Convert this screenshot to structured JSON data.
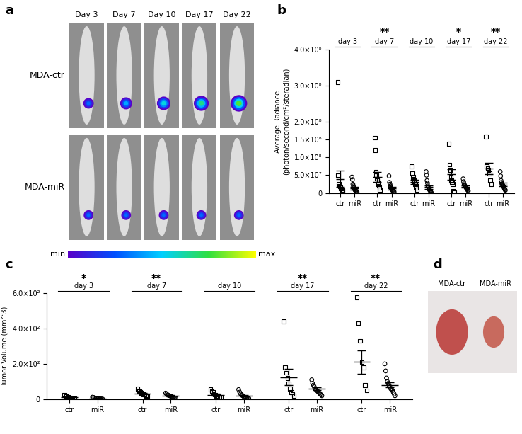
{
  "panel_labels": [
    "a",
    "b",
    "c",
    "d"
  ],
  "panel_a": {
    "columns": [
      "Day 3",
      "Day 7",
      "Day 10",
      "Day 17",
      "Day 22"
    ],
    "rows": [
      "MDA-ctr",
      "MDA-miR"
    ],
    "color_scale": {
      "min_label": "min",
      "max_label": "max"
    }
  },
  "chart_data": [
    {
      "type": "scatter",
      "ylabel": "Average Radiance\n(photon/second/cm²/steradian)",
      "categories": [
        "day 3",
        "day 7",
        "day 10",
        "day 17",
        "day 22"
      ],
      "significance": [
        null,
        "**",
        null,
        "*",
        "**"
      ],
      "ylim": [
        0,
        400000000
      ],
      "yticks": [
        0,
        {
          "value": 50000000,
          "label": "5.0×10⁷"
        },
        {
          "value": 100000000,
          "label": "1.0×10⁸"
        },
        {
          "value": 150000000,
          "label": "1.5×10⁸"
        },
        {
          "value": 200000000,
          "label": "2.0×10⁸"
        },
        {
          "value": 300000000,
          "label": "3.0×10⁸"
        },
        {
          "value": 400000000,
          "label": "4.0×10⁸"
        }
      ],
      "series": [
        {
          "name": "ctr",
          "marker": "square",
          "color": "#000000",
          "values": [
            [
              310000000,
              50000000,
              26000000,
              20000000,
              18000000,
              15000000,
              12000000,
              10000000,
              8000000,
              6000000
            ],
            [
              155000000,
              120000000,
              60000000,
              50000000,
              40000000,
              35000000,
              30000000,
              25000000,
              20000000,
              15000000,
              10000000
            ],
            [
              75000000,
              55000000,
              45000000,
              40000000,
              35000000,
              30000000,
              25000000,
              20000000,
              15000000,
              10000000
            ],
            [
              138000000,
              80000000,
              65000000,
              45000000,
              35000000,
              30000000,
              25000000,
              5000000,
              2000000
            ],
            [
              158000000,
              75000000,
              70000000,
              65000000,
              55000000,
              35000000,
              25000000
            ]
          ],
          "means": [
            40000000,
            45000000,
            32000000,
            52000000,
            68000000
          ],
          "errors": [
            22000000,
            13000000,
            6000000,
            15000000,
            16000000
          ]
        },
        {
          "name": "miR",
          "marker": "circle",
          "color": "#000000",
          "values": [
            [
              45000000,
              38000000,
              25000000,
              20000000,
              15000000,
              12000000,
              10000000,
              8000000,
              6000000,
              5000000,
              4000000,
              3000000
            ],
            [
              48000000,
              30000000,
              25000000,
              20000000,
              16000000,
              13000000,
              11000000,
              9000000,
              7000000,
              5000000,
              4000000,
              3000000
            ],
            [
              60000000,
              50000000,
              35000000,
              28000000,
              20000000,
              16000000,
              12000000,
              10000000,
              8000000,
              6000000,
              4000000,
              2000000
            ],
            [
              40000000,
              32000000,
              26000000,
              22000000,
              20000000,
              18000000,
              16000000,
              14000000,
              12000000,
              10000000,
              8000000,
              6000000
            ],
            [
              60000000,
              48000000,
              35000000,
              30000000,
              26000000,
              24000000,
              22000000,
              20000000,
              18000000,
              15000000,
              12000000,
              10000000,
              8000000
            ]
          ],
          "means": [
            13000000,
            13000000,
            17000000,
            18000000,
            24000000
          ],
          "errors": [
            4000000,
            4000000,
            5000000,
            3000000,
            5000000
          ]
        }
      ]
    },
    {
      "type": "scatter",
      "ylabel": "Tumor Volume (mm^3)",
      "categories": [
        "day 3",
        "day 7",
        "day 10",
        "day 17",
        "day 22"
      ],
      "significance": [
        "*",
        "**",
        null,
        "**",
        "**"
      ],
      "ylim": [
        0,
        600
      ],
      "yticks": [
        0,
        {
          "value": 200,
          "label": "2.0×10²"
        },
        {
          "value": 400,
          "label": "4.0×10²"
        },
        {
          "value": 600,
          "label": "6.0×10²"
        }
      ],
      "series": [
        {
          "name": "ctr",
          "marker": "square",
          "color": "#000000",
          "values": [
            [
              25,
              20,
              15,
              12,
              10,
              8,
              6,
              5,
              4,
              3
            ],
            [
              60,
              50,
              45,
              40,
              35,
              30,
              28,
              25,
              22,
              20,
              15
            ],
            [
              55,
              45,
              40,
              30,
              25,
              20,
              18,
              15,
              10,
              8
            ],
            [
              440,
              180,
              150,
              120,
              90,
              60,
              40,
              30,
              20
            ],
            [
              575,
              430,
              330,
              210,
              180,
              80,
              50
            ]
          ],
          "means": [
            10,
            33,
            25,
            125,
            210
          ],
          "errors": [
            2,
            4,
            5,
            45,
            65
          ]
        },
        {
          "name": "miR",
          "marker": "circle",
          "color": "#000000",
          "values": [
            [
              12,
              10,
              8,
              6,
              5,
              4,
              3,
              2,
              2,
              1
            ],
            [
              35,
              30,
              25,
              22,
              20,
              18,
              15,
              12,
              10,
              8,
              6
            ],
            [
              55,
              40,
              30,
              25,
              20,
              15,
              12,
              10,
              8,
              6,
              5
            ],
            [
              110,
              90,
              80,
              70,
              60,
              55,
              50,
              45,
              40,
              35,
              30,
              25,
              20
            ],
            [
              200,
              160,
              120,
              100,
              90,
              80,
              70,
              60,
              55,
              50,
              40,
              30,
              20
            ]
          ],
          "means": [
            5,
            19,
            21,
            58,
            80
          ],
          "errors": [
            1,
            3,
            4,
            8,
            14
          ]
        }
      ]
    }
  ],
  "panel_d": {
    "labels": [
      "MDA-ctr",
      "MDA-miR"
    ]
  }
}
